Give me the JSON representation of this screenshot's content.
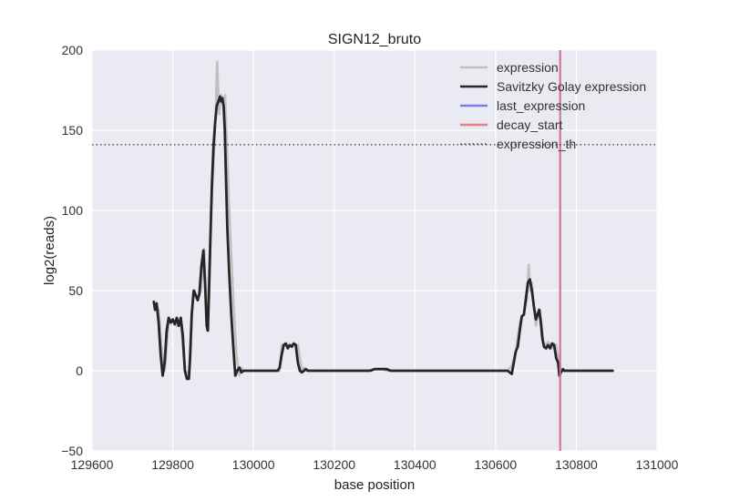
{
  "chart_data": {
    "type": "line",
    "title": "SIGN12_bruto",
    "xlabel": "base position",
    "ylabel": "log2(reads)",
    "xlim": [
      129600,
      131000
    ],
    "ylim": [
      -50,
      200
    ],
    "xticks": [
      129600,
      129800,
      130000,
      130200,
      130400,
      130600,
      130800,
      131000
    ],
    "yticks": [
      -50,
      0,
      50,
      100,
      150,
      200
    ],
    "xtick_labels": [
      "129600",
      "129800",
      "130000",
      "130200",
      "130400",
      "130600",
      "130800",
      "131000"
    ],
    "ytick_labels": [
      "−50",
      "0",
      "50",
      "100",
      "150",
      "200"
    ],
    "grid": true,
    "legend_position": "top-right",
    "series": [
      {
        "name": "expression",
        "color": "#c0c0c0",
        "style": "solid",
        "x": [
          129755,
          129760,
          129765,
          129772,
          129780,
          129790,
          129800,
          129810,
          129820,
          129830,
          129840,
          129850,
          129855,
          129860,
          129870,
          129878,
          129885,
          129895,
          129905,
          129910,
          129915,
          129920,
          129925,
          129930,
          129940,
          129950,
          129958,
          129965,
          129970,
          129975,
          129980,
          130050,
          130065,
          130070,
          130080,
          130090,
          130100,
          130110,
          130120,
          130125,
          130130,
          130280,
          130300,
          130320,
          130330,
          130630,
          130640,
          130650,
          130660,
          130670,
          130678,
          130682,
          130686,
          130690,
          130695,
          130700,
          130705,
          130710,
          130720,
          130730,
          130740,
          130745,
          130750,
          130755,
          130760,
          130770,
          130780,
          130890
        ],
        "y": [
          42,
          40,
          38,
          15,
          0,
          30,
          32,
          28,
          30,
          0,
          -2,
          48,
          50,
          45,
          50,
          76,
          25,
          100,
          150,
          193,
          160,
          172,
          168,
          172,
          100,
          45,
          10,
          -3,
          2,
          0,
          0,
          0,
          0,
          16,
          17,
          15,
          17,
          16,
          0,
          2,
          0,
          0,
          1,
          1,
          0,
          0,
          3,
          12,
          30,
          36,
          45,
          66,
          50,
          55,
          40,
          28,
          35,
          38,
          15,
          18,
          14,
          17,
          16,
          8,
          0,
          0,
          0,
          0
        ]
      },
      {
        "name": "Savitzky Golay expression",
        "color": "#262626",
        "style": "solid",
        "x": [
          129753,
          129756,
          129760,
          129765,
          129770,
          129775,
          129780,
          129785,
          129790,
          129795,
          129800,
          129805,
          129810,
          129815,
          129820,
          129825,
          129830,
          129835,
          129840,
          129843,
          129847,
          129852,
          129857,
          129862,
          129866,
          129871,
          129876,
          129880,
          129884,
          129887,
          129890,
          129893,
          129897,
          129901,
          129905,
          129909,
          129913,
          129917,
          129920,
          129923,
          129926,
          129929,
          129932,
          129935,
          129940,
          129945,
          129950,
          129955,
          129960,
          129965,
          129970,
          129975,
          129980,
          130000,
          130050,
          130060,
          130065,
          130070,
          130075,
          130080,
          130085,
          130090,
          130095,
          130100,
          130105,
          130110,
          130115,
          130120,
          130125,
          130130,
          130135,
          130140,
          130280,
          130290,
          130300,
          130310,
          130320,
          130330,
          130340,
          130620,
          130630,
          130635,
          130640,
          130645,
          130650,
          130655,
          130660,
          130665,
          130670,
          130675,
          130680,
          130685,
          130690,
          130695,
          130700,
          130704,
          130708,
          130712,
          130716,
          130720,
          130725,
          130730,
          130735,
          130740,
          130745,
          130750,
          130755,
          130758,
          130762,
          130767,
          130770,
          130775,
          130780,
          130785,
          130890
        ],
        "y": [
          43,
          38,
          42,
          30,
          10,
          -3,
          5,
          25,
          33,
          30,
          32,
          29,
          33,
          28,
          33,
          22,
          0,
          -5,
          -5,
          8,
          35,
          50,
          47,
          44,
          48,
          65,
          75,
          55,
          28,
          25,
          50,
          80,
          115,
          140,
          155,
          165,
          168,
          171,
          168,
          170,
          165,
          150,
          120,
          90,
          60,
          35,
          15,
          -3,
          0,
          2,
          -1,
          0,
          0,
          0,
          0,
          0,
          2,
          10,
          16,
          17,
          14,
          16,
          15,
          17,
          16,
          5,
          0,
          -1,
          0,
          1,
          0,
          0,
          0,
          0,
          1,
          1,
          1,
          1,
          0,
          0,
          0,
          -1,
          -2,
          5,
          12,
          15,
          25,
          34,
          35,
          45,
          55,
          57,
          50,
          40,
          32,
          35,
          38,
          30,
          20,
          15,
          14,
          16,
          14,
          17,
          16,
          8,
          5,
          -3,
          -1,
          1,
          0,
          0,
          0,
          0,
          0
        ]
      },
      {
        "name": "last_expression",
        "color": "#7070f0",
        "style": "vertical",
        "x_value": 130760
      },
      {
        "name": "decay_start",
        "color": "#f07070",
        "style": "vertical",
        "x_value": 130760
      },
      {
        "name": "expression_th",
        "color": "#333333",
        "style": "dotted-horizontal",
        "y_value": 141
      }
    ]
  }
}
